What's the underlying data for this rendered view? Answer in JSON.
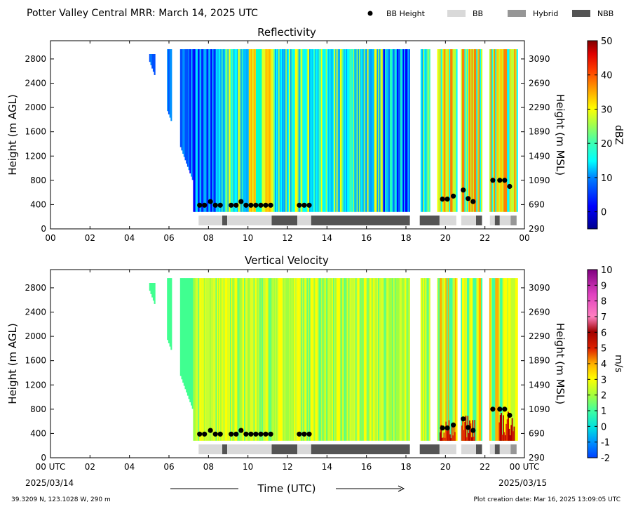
{
  "header": {
    "title": "Potter Valley Central MRR:  March 14, 2025 UTC",
    "legend": [
      {
        "label": "BB Height",
        "kind": "dot",
        "color": "#000000"
      },
      {
        "label": "BB",
        "kind": "rect",
        "color": "#d9d9d9"
      },
      {
        "label": "Hybrid",
        "kind": "rect",
        "color": "#969696"
      },
      {
        "label": "NBB",
        "kind": "rect",
        "color": "#545454"
      }
    ]
  },
  "footer": {
    "location": "39.3209 N, 123.1028 W, 290 m",
    "created": "Plot creation date: Mar 16, 2025 13:09:05 UTC",
    "xlabel": "Time (UTC)",
    "start_date": "2025/03/14",
    "end_date": "2025/03/15"
  },
  "chart_data": [
    {
      "type": "heatmap",
      "title": "Reflectivity",
      "ylabel": "Height (m AGL)",
      "ylabel_right": "Height (m MSL)",
      "xlim": [
        0,
        24
      ],
      "ylim": [
        0,
        3100
      ],
      "xticks": [
        "00",
        "02",
        "04",
        "06",
        "08",
        "10",
        "12",
        "14",
        "16",
        "18",
        "20",
        "22",
        "00"
      ],
      "yticks": [
        0,
        400,
        800,
        1200,
        1600,
        2000,
        2400,
        2800
      ],
      "yticks_right": [
        290,
        690,
        1090,
        1490,
        1890,
        2290,
        2690,
        3090
      ],
      "colorbar": {
        "label": "dBZ",
        "min": -5,
        "max": 50,
        "ticks": [
          0,
          10,
          20,
          30,
          40,
          50
        ]
      },
      "bb_height": {
        "t": [
          7.55,
          7.8,
          8.1,
          8.35,
          8.6,
          9.15,
          9.4,
          9.65,
          9.9,
          10.15,
          10.4,
          10.65,
          10.9,
          11.15,
          12.6,
          12.85,
          13.1,
          19.85,
          20.1,
          20.4,
          20.9,
          21.15,
          21.4,
          22.4,
          22.75,
          23.0,
          23.25
        ],
        "h": [
          390,
          390,
          450,
          390,
          390,
          390,
          390,
          450,
          390,
          390,
          390,
          390,
          390,
          390,
          390,
          390,
          390,
          490,
          490,
          540,
          640,
          500,
          450,
          800,
          800,
          800,
          700
        ]
      },
      "bands": [
        {
          "start": 7.5,
          "end": 8.7,
          "type": "BB"
        },
        {
          "start": 8.7,
          "end": 8.95,
          "type": "NBB"
        },
        {
          "start": 8.95,
          "end": 11.2,
          "type": "BB"
        },
        {
          "start": 11.2,
          "end": 12.5,
          "type": "NBB"
        },
        {
          "start": 12.5,
          "end": 13.2,
          "type": "BB"
        },
        {
          "start": 13.2,
          "end": 18.2,
          "type": "NBB"
        },
        {
          "start": 18.7,
          "end": 19.7,
          "type": "NBB"
        },
        {
          "start": 19.7,
          "end": 20.55,
          "type": "BB"
        },
        {
          "start": 20.8,
          "end": 21.55,
          "type": "BB"
        },
        {
          "start": 21.55,
          "end": 21.85,
          "type": "NBB"
        },
        {
          "start": 22.25,
          "end": 22.5,
          "type": "BB"
        },
        {
          "start": 22.5,
          "end": 22.75,
          "type": "NBB"
        },
        {
          "start": 22.75,
          "end": 23.3,
          "type": "BB"
        },
        {
          "start": 23.3,
          "end": 23.6,
          "type": "Hybrid"
        }
      ]
    },
    {
      "type": "heatmap",
      "title": "Vertical Velocity",
      "ylabel": "Height (m AGL)",
      "ylabel_right": "Height (m MSL)",
      "xlim": [
        0,
        24
      ],
      "ylim": [
        0,
        3100
      ],
      "xticks": [
        "00 UTC",
        "02",
        "04",
        "06",
        "08",
        "10",
        "12",
        "14",
        "16",
        "18",
        "20",
        "22",
        "00 UTC"
      ],
      "yticks": [
        0,
        400,
        800,
        1200,
        1600,
        2000,
        2400,
        2800
      ],
      "yticks_right": [
        290,
        690,
        1090,
        1490,
        1890,
        2290,
        2690,
        3090
      ],
      "colorbar": {
        "label": "m/s",
        "min": -2,
        "max": 10,
        "ticks": [
          -2,
          -1,
          0,
          1,
          2,
          3,
          4,
          5,
          6,
          7,
          8,
          9,
          10
        ]
      },
      "bb_height": {
        "t": [
          7.55,
          7.8,
          8.1,
          8.35,
          8.6,
          9.15,
          9.4,
          9.65,
          9.9,
          10.15,
          10.4,
          10.65,
          10.9,
          11.15,
          12.6,
          12.85,
          13.1,
          19.85,
          20.1,
          20.4,
          20.9,
          21.15,
          21.4,
          22.4,
          22.75,
          23.0,
          23.25
        ],
        "h": [
          390,
          390,
          450,
          390,
          390,
          390,
          390,
          450,
          390,
          390,
          390,
          390,
          390,
          390,
          390,
          390,
          390,
          490,
          490,
          540,
          640,
          500,
          450,
          800,
          800,
          800,
          700
        ]
      },
      "bands": [
        {
          "start": 7.5,
          "end": 8.7,
          "type": "BB"
        },
        {
          "start": 8.7,
          "end": 8.95,
          "type": "NBB"
        },
        {
          "start": 8.95,
          "end": 11.2,
          "type": "BB"
        },
        {
          "start": 11.2,
          "end": 12.5,
          "type": "NBB"
        },
        {
          "start": 12.5,
          "end": 13.2,
          "type": "BB"
        },
        {
          "start": 13.2,
          "end": 18.2,
          "type": "NBB"
        },
        {
          "start": 18.7,
          "end": 19.7,
          "type": "NBB"
        },
        {
          "start": 19.7,
          "end": 20.55,
          "type": "BB"
        },
        {
          "start": 20.8,
          "end": 21.55,
          "type": "BB"
        },
        {
          "start": 21.55,
          "end": 21.85,
          "type": "NBB"
        },
        {
          "start": 22.25,
          "end": 22.5,
          "type": "BB"
        },
        {
          "start": 22.5,
          "end": 22.75,
          "type": "NBB"
        },
        {
          "start": 22.75,
          "end": 23.3,
          "type": "BB"
        },
        {
          "start": 23.3,
          "end": 23.6,
          "type": "Hybrid"
        }
      ]
    }
  ],
  "colors": {
    "bb": "#d9d9d9",
    "hybrid": "#969696",
    "nbb": "#545454",
    "dot": "#000000"
  }
}
